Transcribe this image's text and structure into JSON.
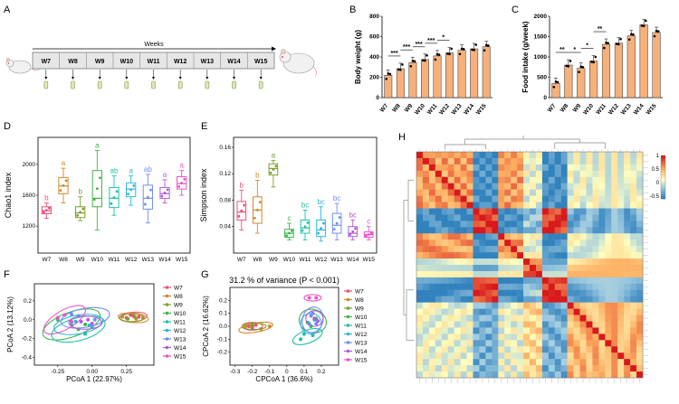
{
  "panel_labels": {
    "A": "A",
    "B": "B",
    "C": "C",
    "D": "D",
    "E": "E",
    "F": "F",
    "G": "G",
    "H": "H"
  },
  "timeline": {
    "title": "Weeks",
    "weeks": [
      "W7",
      "W8",
      "W9",
      "W10",
      "W11",
      "W12",
      "W13",
      "W14",
      "W15"
    ]
  },
  "colors": {
    "bar": "#f6b07b",
    "groups": [
      "#ef4f78",
      "#d0882a",
      "#7aa12c",
      "#3fb64a",
      "#1fc1a7",
      "#2cb6da",
      "#6f8ef2",
      "#b45ad9",
      "#ee52c7"
    ]
  },
  "chart_data": [
    {
      "id": "B",
      "type": "bar",
      "title": "",
      "categories": [
        "W7",
        "W8",
        "W9",
        "W10",
        "W11",
        "W12",
        "W13",
        "W14",
        "W15"
      ],
      "values": [
        220,
        285,
        345,
        375,
        410,
        440,
        465,
        480,
        500
      ],
      "ylabel": "Body weight (g)",
      "ylim": [
        0,
        800
      ],
      "yticks": [
        "0",
        "200",
        "400",
        "600",
        "800"
      ],
      "significance": [
        {
          "from": "W7",
          "to": "W8",
          "label": "***"
        },
        {
          "from": "W8",
          "to": "W9",
          "label": "***"
        },
        {
          "from": "W9",
          "to": "W10",
          "label": "***"
        },
        {
          "from": "W10",
          "to": "W11",
          "label": "***"
        },
        {
          "from": "W11",
          "to": "W12",
          "label": "*"
        }
      ]
    },
    {
      "id": "C",
      "type": "bar",
      "title": "",
      "categories": [
        "W7",
        "W8",
        "W9",
        "W10",
        "W11",
        "W12",
        "W13",
        "W14",
        "W15"
      ],
      "values": [
        350,
        800,
        720,
        900,
        1310,
        1340,
        1520,
        1790,
        1600
      ],
      "ylabel": "Food intake (g/week)",
      "ylim": [
        0,
        2000
      ],
      "yticks": [
        "0",
        "500",
        "1000",
        "1500",
        "2000"
      ],
      "significance": [
        {
          "from": "W7",
          "to": "W8",
          "label": "**"
        },
        {
          "from": "W8",
          "to": "W9",
          "label": "*"
        },
        {
          "from": "W9",
          "to": "W10",
          "label": "*"
        },
        {
          "from": "W10",
          "to": "W11",
          "label": "**"
        }
      ]
    },
    {
      "id": "D",
      "type": "box",
      "categories": [
        "W7",
        "W8",
        "W9",
        "W10",
        "W11",
        "W12",
        "W13",
        "W14",
        "W15"
      ],
      "ylabel": "Chao1 index",
      "ylim": [
        850,
        2350
      ],
      "yticks": [
        "1200",
        "1600",
        "2000"
      ],
      "ytick_values": [
        1200,
        1600,
        2000
      ],
      "boxes": [
        {
          "min": 1300,
          "q1": 1360,
          "median": 1400,
          "q3": 1450,
          "max": 1500
        },
        {
          "min": 1500,
          "q1": 1620,
          "median": 1720,
          "q3": 1830,
          "max": 1950
        },
        {
          "min": 1270,
          "q1": 1310,
          "median": 1370,
          "q3": 1450,
          "max": 1580
        },
        {
          "min": 1150,
          "q1": 1450,
          "median": 1560,
          "q3": 1920,
          "max": 2180
        },
        {
          "min": 1340,
          "q1": 1440,
          "median": 1560,
          "q3": 1700,
          "max": 1850
        },
        {
          "min": 1470,
          "q1": 1580,
          "median": 1680,
          "q3": 1760,
          "max": 1850
        },
        {
          "min": 1240,
          "q1": 1420,
          "median": 1560,
          "q3": 1730,
          "max": 1870
        },
        {
          "min": 1500,
          "q1": 1560,
          "median": 1620,
          "q3": 1700,
          "max": 1800
        },
        {
          "min": 1600,
          "q1": 1680,
          "median": 1750,
          "q3": 1840,
          "max": 1920
        }
      ],
      "letters": [
        "b",
        "a",
        "b",
        "a",
        "ab",
        "a",
        "ab",
        "a",
        "a"
      ]
    },
    {
      "id": "E",
      "type": "box",
      "categories": [
        "W7",
        "W8",
        "W9",
        "W10",
        "W11",
        "W12",
        "W13",
        "W14",
        "W15"
      ],
      "ylabel": "Simpson index",
      "ylim": [
        0.0,
        0.175
      ],
      "yticks": [
        "0.04",
        "0.08",
        "0.12",
        "0.16"
      ],
      "ytick_values": [
        0.04,
        0.08,
        0.12,
        0.16
      ],
      "boxes": [
        {
          "min": 0.035,
          "q1": 0.05,
          "median": 0.062,
          "q3": 0.078,
          "max": 0.095
        },
        {
          "min": 0.03,
          "q1": 0.045,
          "median": 0.065,
          "q3": 0.085,
          "max": 0.11
        },
        {
          "min": 0.1,
          "q1": 0.118,
          "median": 0.128,
          "q3": 0.135,
          "max": 0.14
        },
        {
          "min": 0.02,
          "q1": 0.024,
          "median": 0.03,
          "q3": 0.036,
          "max": 0.045
        },
        {
          "min": 0.02,
          "q1": 0.03,
          "median": 0.038,
          "q3": 0.05,
          "max": 0.065
        },
        {
          "min": 0.018,
          "q1": 0.025,
          "median": 0.035,
          "q3": 0.05,
          "max": 0.07
        },
        {
          "min": 0.02,
          "q1": 0.03,
          "median": 0.042,
          "q3": 0.06,
          "max": 0.075
        },
        {
          "min": 0.02,
          "q1": 0.025,
          "median": 0.03,
          "q3": 0.04,
          "max": 0.05
        },
        {
          "min": 0.02,
          "q1": 0.024,
          "median": 0.028,
          "q3": 0.032,
          "max": 0.04
        }
      ],
      "letters": [
        "b",
        "b",
        "a",
        "c",
        "bc",
        "bc",
        "bc",
        "bc",
        "c"
      ]
    },
    {
      "id": "F",
      "type": "scatter",
      "xlabel": "PCoA 1 (22.97%)",
      "ylabel": "PCoA 2 (13.12%)",
      "xlim": [
        -0.42,
        0.45
      ],
      "ylim": [
        -0.48,
        0.38
      ],
      "xticks": [
        "-0.25",
        "0.00",
        "0.25"
      ],
      "xtick_values": [
        -0.25,
        0.0,
        0.25
      ],
      "yticks": [
        "-0.4",
        "-0.2",
        "0.0",
        "0.2"
      ],
      "ytick_values": [
        -0.4,
        -0.2,
        0.0,
        0.2
      ],
      "legend": [
        "W7",
        "W8",
        "W9",
        "W10",
        "W11",
        "W12",
        "W13",
        "W14",
        "W15"
      ],
      "groups": [
        {
          "cx": 0.3,
          "cy": 0.03,
          "rx": 0.1,
          "ry": 0.05,
          "rot": -5,
          "pts": [
            [
              0.25,
              0.02
            ],
            [
              0.3,
              0.04
            ],
            [
              0.34,
              0.03
            ],
            [
              0.28,
              0.05
            ]
          ]
        },
        {
          "cx": 0.3,
          "cy": 0.02,
          "rx": 0.11,
          "ry": 0.05,
          "rot": 5,
          "pts": [
            [
              0.22,
              0.03
            ],
            [
              0.32,
              0.01
            ],
            [
              0.37,
              0.02
            ]
          ]
        },
        {
          "cx": 0.29,
          "cy": 0.02,
          "rx": 0.09,
          "ry": 0.04,
          "rot": 0,
          "pts": [
            [
              0.26,
              0.01
            ],
            [
              0.31,
              0.03
            ]
          ]
        },
        {
          "cx": -0.15,
          "cy": -0.05,
          "rx": 0.22,
          "ry": 0.13,
          "rot": -20,
          "pts": [
            [
              -0.25,
              0.0
            ],
            [
              -0.2,
              0.05
            ],
            [
              -0.1,
              -0.1
            ],
            [
              -0.05,
              -0.05
            ]
          ]
        },
        {
          "cx": -0.1,
          "cy": -0.1,
          "rx": 0.2,
          "ry": 0.12,
          "rot": -15,
          "pts": [
            [
              -0.15,
              -0.05
            ],
            [
              -0.05,
              -0.15
            ],
            [
              0.0,
              -0.08
            ]
          ]
        },
        {
          "cx": -0.1,
          "cy": -0.05,
          "rx": 0.18,
          "ry": 0.1,
          "rot": -10,
          "pts": [
            [
              -0.12,
              -0.02
            ],
            [
              -0.02,
              -0.06
            ]
          ]
        },
        {
          "cx": -0.05,
          "cy": 0.02,
          "rx": 0.18,
          "ry": 0.1,
          "rot": -10,
          "pts": [
            [
              -0.1,
              0.04
            ],
            [
              0.02,
              0.0
            ],
            [
              -0.15,
              0.06
            ]
          ]
        },
        {
          "cx": -0.05,
          "cy": -0.03,
          "rx": 0.12,
          "ry": 0.07,
          "rot": 0,
          "pts": [
            [
              -0.08,
              -0.02
            ],
            [
              0.0,
              -0.04
            ],
            [
              -0.03,
              0.0
            ]
          ]
        },
        {
          "cx": -0.2,
          "cy": 0.0,
          "rx": 0.17,
          "ry": 0.1,
          "rot": -30,
          "pts": [
            [
              -0.25,
              0.02
            ],
            [
              -0.15,
              -0.02
            ],
            [
              -0.2,
              0.05
            ]
          ]
        }
      ]
    },
    {
      "id": "G",
      "type": "scatter",
      "title": "31.2 % of variance (P < 0.001)",
      "xlabel": "CPCoA 1 (36.6%)",
      "ylabel": "CPCoA 2 (16.62%)",
      "xlim": [
        -0.33,
        0.3
      ],
      "ylim": [
        -0.3,
        0.3
      ],
      "xticks": [
        "-0.3",
        "-0.2",
        "-0.1",
        "0",
        "0.1",
        "0.2"
      ],
      "xtick_values": [
        -0.3,
        -0.2,
        -0.1,
        0.0,
        0.1,
        0.2
      ],
      "yticks": [
        "-0.2",
        "-0.1",
        "0.0",
        "0.1",
        "0.2"
      ],
      "ytick_values": [
        -0.2,
        -0.1,
        0.0,
        0.1,
        0.2
      ],
      "legend": [
        "W7",
        "W8",
        "W9",
        "W10",
        "W11",
        "W12",
        "W13",
        "W14",
        "W15"
      ],
      "groups": [
        {
          "cx": -0.2,
          "cy": 0.0,
          "rx": 0.06,
          "ry": 0.03,
          "rot": 0,
          "pts": [
            [
              -0.22,
              0.0
            ],
            [
              -0.18,
              0.01
            ],
            [
              -0.2,
              -0.01
            ]
          ]
        },
        {
          "cx": -0.18,
          "cy": -0.01,
          "rx": 0.1,
          "ry": 0.035,
          "rot": -10,
          "pts": [
            [
              -0.24,
              0.0
            ],
            [
              -0.15,
              -0.02
            ],
            [
              -0.1,
              0.0
            ]
          ]
        },
        {
          "cx": -0.19,
          "cy": 0.0,
          "rx": 0.07,
          "ry": 0.025,
          "rot": 0,
          "pts": [
            [
              -0.2,
              0.005
            ]
          ]
        },
        {
          "cx": 0.15,
          "cy": 0.04,
          "rx": 0.08,
          "ry": 0.09,
          "rot": 20,
          "pts": [
            [
              0.12,
              0.03
            ],
            [
              0.17,
              0.06
            ],
            [
              0.14,
              0.0
            ]
          ]
        },
        {
          "cx": 0.12,
          "cy": -0.08,
          "rx": 0.09,
          "ry": 0.05,
          "rot": -20,
          "pts": [
            [
              0.08,
              -0.1
            ],
            [
              0.15,
              -0.07
            ],
            [
              0.1,
              -0.06
            ]
          ]
        },
        {
          "cx": 0.14,
          "cy": 0.02,
          "rx": 0.06,
          "ry": 0.08,
          "rot": 30,
          "pts": [
            [
              0.13,
              0.02
            ],
            [
              0.16,
              0.05
            ]
          ]
        },
        {
          "cx": 0.15,
          "cy": 0.05,
          "rx": 0.06,
          "ry": 0.1,
          "rot": 15,
          "pts": [
            [
              0.14,
              0.08
            ],
            [
              0.17,
              0.02
            ],
            [
              0.15,
              0.1
            ]
          ]
        },
        {
          "cx": 0.16,
          "cy": 0.06,
          "rx": 0.05,
          "ry": 0.06,
          "rot": 0,
          "pts": [
            [
              0.16,
              0.06
            ],
            [
              0.18,
              0.04
            ]
          ]
        },
        {
          "cx": 0.15,
          "cy": 0.22,
          "rx": 0.05,
          "ry": 0.025,
          "rot": 0,
          "pts": [
            [
              0.13,
              0.22
            ],
            [
              0.17,
              0.22
            ]
          ]
        }
      ]
    },
    {
      "id": "H",
      "type": "heatmap",
      "n": 36,
      "colorbar_ticks": [
        "1",
        "0.5",
        "0",
        "-0.5"
      ],
      "colorbar_values": [
        1,
        0.5,
        0,
        -0.5
      ],
      "clusters": [
        {
          "start": 0,
          "end": 9,
          "cls": "A"
        },
        {
          "start": 9,
          "end": 13,
          "cls": "B"
        },
        {
          "start": 13,
          "end": 17,
          "cls": "A"
        },
        {
          "start": 17,
          "end": 20,
          "cls": "C"
        },
        {
          "start": 20,
          "end": 24,
          "cls": "B"
        },
        {
          "start": 24,
          "end": 36,
          "cls": "D"
        }
      ]
    }
  ]
}
